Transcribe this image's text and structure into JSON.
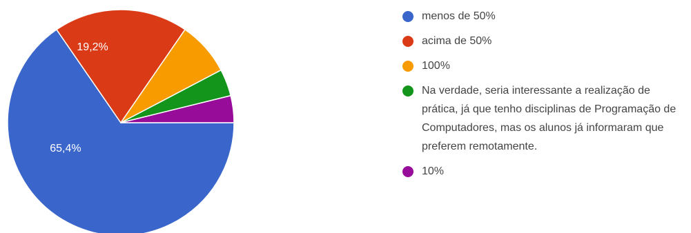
{
  "chart_data": {
    "type": "pie",
    "slices": [
      {
        "label": "menos de 50%",
        "value": 65.4,
        "color": "#3a66cc",
        "data_label": "65,4%"
      },
      {
        "label": "acima de 50%",
        "value": 19.2,
        "color": "#db3a16",
        "data_label": "19,2%"
      },
      {
        "label": "100%",
        "value": 7.7,
        "color": "#f89b00",
        "data_label": ""
      },
      {
        "label": "Na verdade, seria interessante a realização de prática, já que tenho disciplinas de Programação de Computadores, mas os alunos já informaram que preferem remotamente.",
        "value": 3.85,
        "color": "#13941a",
        "data_label": ""
      },
      {
        "label": "10%",
        "value": 3.85,
        "color": "#980c9a",
        "data_label": ""
      }
    ],
    "legend_position": "right"
  }
}
